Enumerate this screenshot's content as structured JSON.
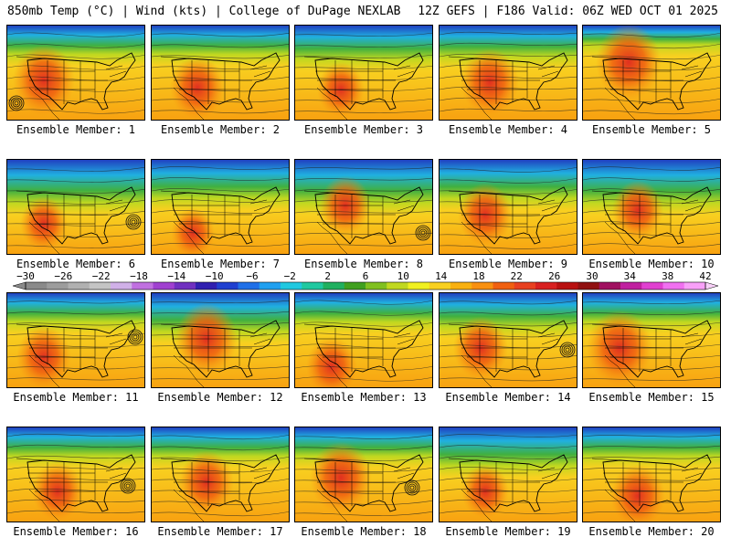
{
  "header": {
    "left": "850mb Temp (°C) | Wind (kts) | College of DuPage NEXLAB",
    "right": "12Z GEFS | F186 Valid: 06Z WED OCT 01 2025"
  },
  "members": [
    {
      "label": "Ensemble Member: 1"
    },
    {
      "label": "Ensemble Member: 2"
    },
    {
      "label": "Ensemble Member: 3"
    },
    {
      "label": "Ensemble Member: 4"
    },
    {
      "label": "Ensemble Member: 5"
    },
    {
      "label": "Ensemble Member: 6"
    },
    {
      "label": "Ensemble Member: 7"
    },
    {
      "label": "Ensemble Member: 8"
    },
    {
      "label": "Ensemble Member: 9"
    },
    {
      "label": "Ensemble Member: 10"
    },
    {
      "label": "Ensemble Member: 11"
    },
    {
      "label": "Ensemble Member: 12"
    },
    {
      "label": "Ensemble Member: 13"
    },
    {
      "label": "Ensemble Member: 14"
    },
    {
      "label": "Ensemble Member: 15"
    },
    {
      "label": "Ensemble Member: 16"
    },
    {
      "label": "Ensemble Member: 17"
    },
    {
      "label": "Ensemble Member: 18"
    },
    {
      "label": "Ensemble Member: 19"
    },
    {
      "label": "Ensemble Member: 20"
    }
  ],
  "colorbar": {
    "ticks": [
      "-30",
      "-26",
      "-22",
      "-18",
      "-14",
      "-10",
      "-6",
      "-2",
      "2",
      "6",
      "10",
      "14",
      "18",
      "22",
      "26",
      "30",
      "34",
      "38",
      "42"
    ],
    "colors": [
      "#8a8a8a",
      "#9c9c9c",
      "#b0b0b0",
      "#c4c4c4",
      "#d0b0e8",
      "#c070e0",
      "#a040d0",
      "#7030c0",
      "#3020b0",
      "#2040d0",
      "#2070e8",
      "#20a0f0",
      "#20c8e0",
      "#20c8a0",
      "#20b060",
      "#40a020",
      "#80c020",
      "#c0d820",
      "#f0f020",
      "#f8d020",
      "#f8b010",
      "#f89010",
      "#f06010",
      "#e84020",
      "#d82020",
      "#b81010",
      "#901010",
      "#a01060",
      "#c020a0",
      "#e040d0",
      "#f070f0",
      "#f8a0f8"
    ]
  }
}
